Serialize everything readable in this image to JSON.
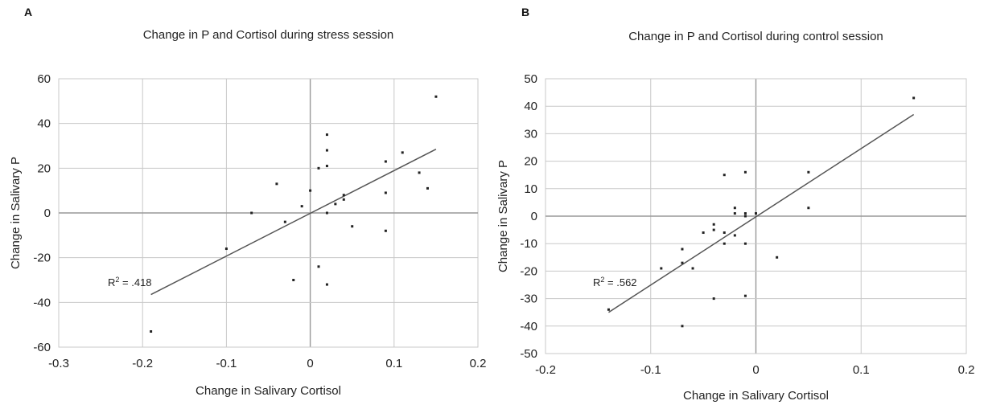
{
  "chart_data": [
    {
      "panel": "A",
      "type": "scatter",
      "title": "Change in P and Cortisol during stress session",
      "xlabel": "Change in Salivary Cortisol",
      "ylabel": "Change in Salivary P",
      "xlim": [
        -0.3,
        0.2
      ],
      "ylim": [
        -60,
        60
      ],
      "xticks": [
        -0.3,
        -0.2,
        -0.1,
        0,
        0.1,
        0.2
      ],
      "xtick_labels": [
        "-0.3",
        "-0.2",
        "-0.1",
        "0",
        "0.1",
        "0.2"
      ],
      "yticks": [
        -60,
        -40,
        -20,
        0,
        20,
        40,
        60
      ],
      "ytick_labels": [
        "-60",
        "-40",
        "-20",
        "0",
        "20",
        "40",
        "60"
      ],
      "grid": true,
      "annotation": {
        "prefix": "R",
        "sup": "2",
        "suffix": " = .418"
      },
      "trendline": {
        "x": [
          -0.19,
          0.15
        ],
        "y": [
          -36.5,
          28.5
        ]
      },
      "points": [
        {
          "x": -0.19,
          "y": -53
        },
        {
          "x": -0.1,
          "y": -16
        },
        {
          "x": -0.07,
          "y": 0
        },
        {
          "x": -0.04,
          "y": 13
        },
        {
          "x": -0.03,
          "y": -4
        },
        {
          "x": -0.02,
          "y": -30
        },
        {
          "x": -0.01,
          "y": 3
        },
        {
          "x": 0.0,
          "y": 10
        },
        {
          "x": 0.01,
          "y": 20
        },
        {
          "x": 0.01,
          "y": -24
        },
        {
          "x": 0.02,
          "y": 35
        },
        {
          "x": 0.02,
          "y": 28
        },
        {
          "x": 0.02,
          "y": 21
        },
        {
          "x": 0.02,
          "y": 0
        },
        {
          "x": 0.02,
          "y": -32
        },
        {
          "x": 0.03,
          "y": 4
        },
        {
          "x": 0.04,
          "y": 8
        },
        {
          "x": 0.04,
          "y": 6
        },
        {
          "x": 0.05,
          "y": -6
        },
        {
          "x": 0.09,
          "y": 23
        },
        {
          "x": 0.09,
          "y": 9
        },
        {
          "x": 0.09,
          "y": -8
        },
        {
          "x": 0.11,
          "y": 27
        },
        {
          "x": 0.13,
          "y": 18
        },
        {
          "x": 0.14,
          "y": 11
        },
        {
          "x": 0.15,
          "y": 52
        }
      ]
    },
    {
      "panel": "B",
      "type": "scatter",
      "title": "Change in P and Cortisol during control session",
      "xlabel": "Change in Salivary Cortisol",
      "ylabel": "Change in Salivary P",
      "xlim": [
        -0.2,
        0.2
      ],
      "ylim": [
        -50,
        50
      ],
      "xticks": [
        -0.2,
        -0.1,
        0,
        0.1,
        0.2
      ],
      "xtick_labels": [
        "-0.2",
        "-0.1",
        "0",
        "0.1",
        "0.2"
      ],
      "yticks": [
        -50,
        -40,
        -30,
        -20,
        -10,
        0,
        10,
        20,
        30,
        40,
        50
      ],
      "ytick_labels": [
        "-50",
        "-40",
        "-30",
        "-20",
        "-10",
        "0",
        "10",
        "20",
        "30",
        "40",
        "50"
      ],
      "grid": true,
      "annotation": {
        "prefix": "R",
        "sup": "2",
        "suffix": " = .562"
      },
      "trendline": {
        "x": [
          -0.14,
          0.15
        ],
        "y": [
          -35,
          37
        ]
      },
      "points": [
        {
          "x": -0.14,
          "y": -34
        },
        {
          "x": -0.09,
          "y": -19
        },
        {
          "x": -0.07,
          "y": -12
        },
        {
          "x": -0.07,
          "y": -17
        },
        {
          "x": -0.07,
          "y": -40
        },
        {
          "x": -0.06,
          "y": -19
        },
        {
          "x": -0.05,
          "y": -6
        },
        {
          "x": -0.04,
          "y": -3
        },
        {
          "x": -0.04,
          "y": -5
        },
        {
          "x": -0.04,
          "y": -30
        },
        {
          "x": -0.03,
          "y": 15
        },
        {
          "x": -0.03,
          "y": -6
        },
        {
          "x": -0.03,
          "y": -10
        },
        {
          "x": -0.02,
          "y": 3
        },
        {
          "x": -0.02,
          "y": 1
        },
        {
          "x": -0.02,
          "y": -7
        },
        {
          "x": -0.01,
          "y": 16
        },
        {
          "x": -0.01,
          "y": 0
        },
        {
          "x": -0.01,
          "y": 1
        },
        {
          "x": -0.01,
          "y": -10
        },
        {
          "x": -0.01,
          "y": -29
        },
        {
          "x": 0.0,
          "y": 1
        },
        {
          "x": 0.02,
          "y": -15
        },
        {
          "x": 0.05,
          "y": 16
        },
        {
          "x": 0.05,
          "y": 3
        },
        {
          "x": 0.15,
          "y": 43
        }
      ]
    }
  ],
  "colors": {
    "point": "#222222",
    "line": "#555555",
    "grid": "#c8c8c8",
    "zero_axis": "#999999",
    "frame": "#cfcfcf"
  }
}
